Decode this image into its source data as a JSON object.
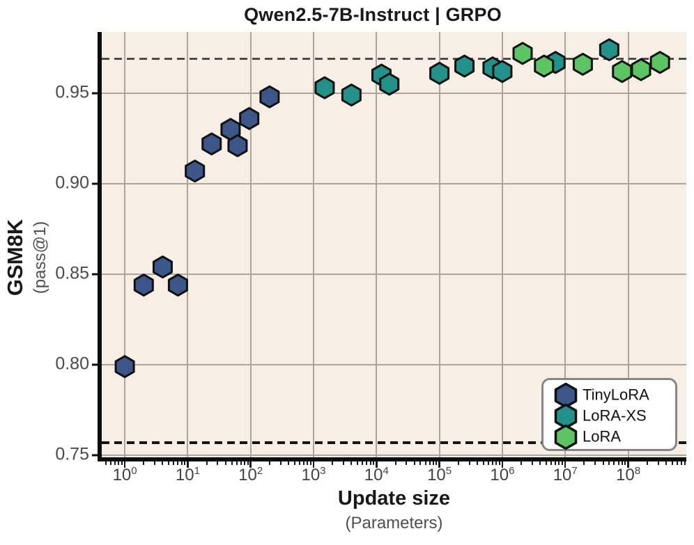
{
  "title": "Qwen2.5-7B-Instruct  |  GRPO",
  "chart_data": {
    "type": "scatter",
    "title": "Qwen2.5-7B-Instruct  |  GRPO",
    "marker_shape": "hexagon",
    "grid": true,
    "plot_background": "#f7efe6",
    "grid_color": "#ada59c",
    "x_axis": {
      "label": "Update size",
      "sublabel": "(Parameters)",
      "scale": "log",
      "min": 0.43,
      "max": 840000000,
      "ticks": [
        {
          "v": 1,
          "base": "10",
          "exp": "0"
        },
        {
          "v": 10,
          "base": "10",
          "exp": "1"
        },
        {
          "v": 100,
          "base": "10",
          "exp": "2"
        },
        {
          "v": 1000,
          "base": "10",
          "exp": "3"
        },
        {
          "v": 10000,
          "base": "10",
          "exp": "4"
        },
        {
          "v": 100000,
          "base": "10",
          "exp": "5"
        },
        {
          "v": 1000000,
          "base": "10",
          "exp": "6"
        },
        {
          "v": 10000000,
          "base": "10",
          "exp": "7"
        },
        {
          "v": 100000000,
          "base": "10",
          "exp": "8"
        }
      ]
    },
    "y_axis": {
      "label": "GSM8K",
      "sublabel": "(pass@1)",
      "scale": "linear",
      "min": 0.7485,
      "max": 0.9838,
      "ticks": [
        {
          "v": 0.75,
          "label": "0.75"
        },
        {
          "v": 0.8,
          "label": "0.80"
        },
        {
          "v": 0.85,
          "label": "0.85"
        },
        {
          "v": 0.9,
          "label": "0.90"
        },
        {
          "v": 0.95,
          "label": "0.95"
        }
      ]
    },
    "baselines": [
      {
        "v": 0.969,
        "color": "#4c4c4c"
      },
      {
        "v": 0.757,
        "color": "#141414"
      }
    ],
    "series": [
      {
        "name": "TinyLoRA",
        "color": "#3d5689",
        "points": [
          [
            1,
            0.799
          ],
          [
            2,
            0.844
          ],
          [
            4,
            0.854
          ],
          [
            7,
            0.844
          ],
          [
            13,
            0.907
          ],
          [
            24,
            0.922
          ],
          [
            48,
            0.93
          ],
          [
            62,
            0.921
          ],
          [
            95,
            0.936
          ],
          [
            200,
            0.948
          ]
        ]
      },
      {
        "name": "LoRA-XS",
        "color": "#21918a",
        "points": [
          [
            1500,
            0.953
          ],
          [
            4000,
            0.949
          ],
          [
            12000,
            0.96
          ],
          [
            16000,
            0.955
          ],
          [
            100000,
            0.961
          ],
          [
            250000,
            0.965
          ],
          [
            700000,
            0.964
          ],
          [
            1000000,
            0.962
          ],
          [
            7000000,
            0.967
          ],
          [
            50000000,
            0.974
          ]
        ]
      },
      {
        "name": "LoRA",
        "color": "#5cc463",
        "points": [
          [
            2100000,
            0.972
          ],
          [
            4600000,
            0.965
          ],
          [
            19000000,
            0.966
          ],
          [
            80000000,
            0.962
          ],
          [
            160000000,
            0.963
          ],
          [
            320000000,
            0.967
          ]
        ]
      }
    ],
    "legend": {
      "position": "lower right"
    }
  }
}
